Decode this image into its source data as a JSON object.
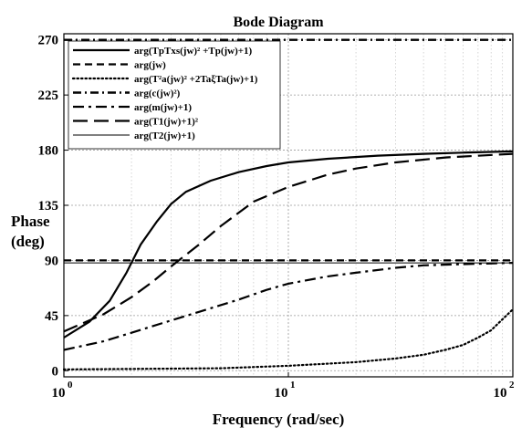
{
  "chart_data": {
    "type": "line",
    "title": "Bode Diagram",
    "xlabel": "Frequency  (rad/sec)",
    "ylabel": [
      "Phase",
      "(deg)"
    ],
    "xscale": "log",
    "xlim": [
      1,
      100
    ],
    "ylim": [
      -5,
      275
    ],
    "x_ticks": [
      {
        "base": "10",
        "exp": "0"
      },
      {
        "base": "10",
        "exp": "1"
      },
      {
        "base": "10",
        "exp": "2"
      }
    ],
    "y_ticks": [
      "0",
      "45",
      "90",
      "135",
      "180",
      "225",
      "270"
    ],
    "legend_position": "top-left",
    "series": [
      {
        "name": "arg(TpTxs(jw)² +Tp(jw)+1)",
        "style": "solid",
        "x": [
          1,
          1.3,
          1.6,
          1.9,
          2.2,
          2.6,
          3,
          3.5,
          4.5,
          6,
          8,
          10,
          15,
          25,
          40,
          60,
          100
        ],
        "y": [
          27,
          40,
          57,
          80,
          103,
          122,
          136,
          146,
          155,
          162,
          167,
          170,
          173,
          175.5,
          177,
          178,
          179
        ]
      },
      {
        "name": "arg(jw)",
        "style": "dash",
        "x": [
          1,
          100
        ],
        "y": [
          90,
          90
        ]
      },
      {
        "name": "arg(T²a(jw)² +2TaξTa(jw)+1)",
        "style": "dot",
        "x": [
          1,
          5,
          10,
          20,
          30,
          40,
          50,
          60,
          70,
          80,
          90,
          100
        ],
        "y": [
          1,
          2,
          4,
          7,
          10,
          13,
          17,
          21,
          27,
          33,
          42,
          50
        ]
      },
      {
        "name": "arg(c(jw)²)",
        "style": "dashdot-heavy",
        "x": [
          1,
          100
        ],
        "y": [
          270,
          270
        ]
      },
      {
        "name": "arg(m(jw)+1)",
        "style": "dashdot",
        "x": [
          1,
          1.5,
          2,
          3,
          4,
          6,
          8,
          10,
          15,
          20,
          30,
          40,
          60,
          100
        ],
        "y": [
          17,
          24,
          31,
          41,
          48,
          58,
          66,
          71,
          77,
          80,
          84,
          86,
          87,
          88
        ]
      },
      {
        "name": "arg(T1(jw)+1)²",
        "style": "longdash",
        "x": [
          1,
          1.5,
          2,
          2.5,
          3,
          4,
          5,
          7,
          10,
          15,
          20,
          30,
          50,
          100
        ],
        "y": [
          32,
          46,
          60,
          73,
          85,
          103,
          118,
          138,
          150,
          160,
          165,
          170,
          174,
          177
        ]
      },
      {
        "name": "arg(T2(jw)+1)",
        "style": "thin",
        "x": [
          1,
          100
        ],
        "y": [
          88,
          88
        ]
      }
    ]
  }
}
